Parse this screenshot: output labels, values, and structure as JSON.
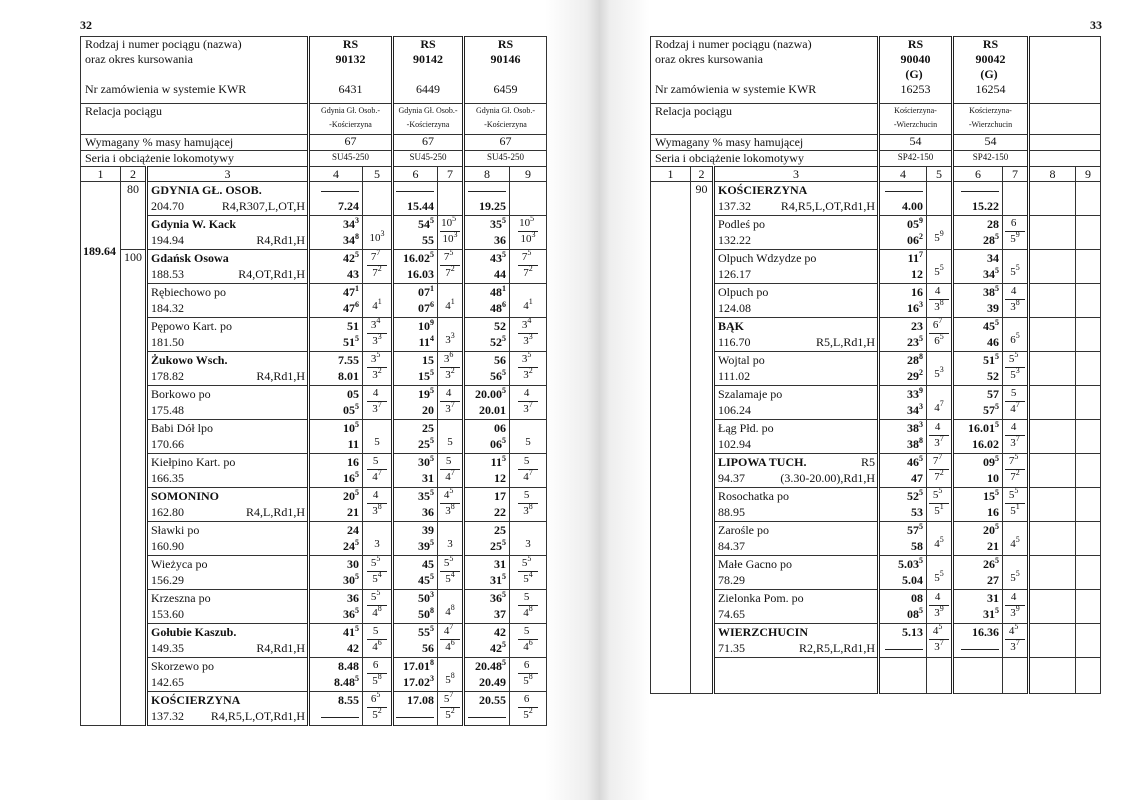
{
  "labels": {
    "train_type": "Rodzaj i numer pociągu (nazwa)",
    "period": "oraz okres kursowania",
    "kwr": "Nr zamówienia w systemie KWR",
    "relation": "Relacja pociągu",
    "brake": "Wymagany % masy hamującej",
    "loco": "Seria i obciążenie lokomotywy",
    "col_numbers": [
      "1",
      "2",
      "3",
      "4",
      "5",
      "6",
      "7",
      "8",
      "9"
    ]
  },
  "pages": [
    {
      "page_number": "32",
      "km_total": "189.64",
      "speed_marks": [
        {
          "value": "80",
          "rows": 2
        },
        {
          "value": "100",
          "rows": 14
        }
      ],
      "trains": [
        {
          "type": "RS",
          "number": "90132",
          "extra": "",
          "kwr": "6431",
          "relation": [
            "Gdynia Gł. Osob.-",
            "-Kościerzyna"
          ],
          "brake": "67",
          "loco": "SU45-250"
        },
        {
          "type": "RS",
          "number": "90142",
          "extra": "",
          "kwr": "6449",
          "relation": [
            "Gdynia Gł. Osob.-",
            "-Kościerzyna"
          ],
          "brake": "67",
          "loco": "SU45-250"
        },
        {
          "type": "RS",
          "number": "90146",
          "extra": "",
          "kwr": "6459",
          "relation": [
            "Gdynia Gł. Osob.-",
            "-Kościerzyna"
          ],
          "brake": "67",
          "loco": "SU45-250"
        }
      ],
      "stations": [
        {
          "name": "GDYNIA GŁ. OSOB.",
          "bold": true,
          "km": "204.70",
          "codes": "R4,R307,L,OT,H",
          "times": [
            [
              "—",
              "7.24",
              "",
              ""
            ],
            [
              "—",
              "15.44",
              "",
              ""
            ],
            [
              "—",
              "19.25",
              "",
              ""
            ]
          ]
        },
        {
          "name": "Gdynia W. Kack",
          "bold": true,
          "km": "194.94",
          "codes": "R4,Rd1,H",
          "times": [
            [
              "34^3",
              "34^8",
              "",
              "10^3"
            ],
            [
              "54^5",
              "55",
              "10^5",
              "10^3"
            ],
            [
              "35^5",
              "36",
              "10^5",
              "10^3"
            ]
          ]
        },
        {
          "name": "Gdańsk Osowa",
          "bold": true,
          "km": "188.53",
          "codes": "R4,OT,Rd1,H",
          "times": [
            [
              "42^5",
              "43",
              "7^7",
              "7^2"
            ],
            [
              "16.02^5",
              "16.03",
              "7^5",
              "7^2"
            ],
            [
              "43^5",
              "44",
              "7^5",
              "7^2"
            ]
          ]
        },
        {
          "name": "Rębiechowo po",
          "bold": false,
          "km": "184.32",
          "codes": "",
          "times": [
            [
              "47^1",
              "47^6",
              "",
              "4^1"
            ],
            [
              "07^1",
              "07^6",
              "",
              "4^1"
            ],
            [
              "48^1",
              "48^6",
              "",
              "4^1"
            ]
          ]
        },
        {
          "name": "Pępowo Kart. po",
          "bold": false,
          "km": "181.50",
          "codes": "",
          "times": [
            [
              "51",
              "51^5",
              "3^4",
              "3^3"
            ],
            [
              "10^9",
              "11^4",
              "",
              "3^3"
            ],
            [
              "52",
              "52^5",
              "3^4",
              "3^3"
            ]
          ]
        },
        {
          "name": "Żukowo Wsch.",
          "bold": true,
          "km": "178.82",
          "codes": "R4,Rd1,H",
          "times": [
            [
              "7.55",
              "8.01",
              "3^5",
              "3^2"
            ],
            [
              "15",
              "15^5",
              "3^6",
              "3^2"
            ],
            [
              "56",
              "56^5",
              "3^5",
              "3^2"
            ]
          ]
        },
        {
          "name": "Borkowo po",
          "bold": false,
          "km": "175.48",
          "codes": "",
          "times": [
            [
              "05",
              "05^5",
              "4",
              "3^7"
            ],
            [
              "19^5",
              "20",
              "4",
              "3^7"
            ],
            [
              "20.00^5",
              "20.01",
              "4",
              "3^7"
            ]
          ]
        },
        {
          "name": "Babi Dół lpo",
          "bold": false,
          "km": "170.66",
          "codes": "",
          "times": [
            [
              "10^5",
              "11",
              "",
              "5"
            ],
            [
              "25",
              "25^5",
              "",
              "5"
            ],
            [
              "06",
              "06^5",
              "",
              "5"
            ]
          ]
        },
        {
          "name": "Kiełpino Kart. po",
          "bold": false,
          "km": "166.35",
          "codes": "",
          "times": [
            [
              "16",
              "16^5",
              "5",
              "4^7"
            ],
            [
              "30^5",
              "31",
              "5",
              "4^7"
            ],
            [
              "11^5",
              "12",
              "5",
              "4^7"
            ]
          ]
        },
        {
          "name": "SOMONINO",
          "bold": true,
          "km": "162.80",
          "codes": "R4,L,Rd1,H",
          "times": [
            [
              "20^5",
              "21",
              "4",
              "3^8"
            ],
            [
              "35^5",
              "36",
              "4^5",
              "3^8"
            ],
            [
              "17",
              "22",
              "5",
              "3^8"
            ]
          ]
        },
        {
          "name": "Sławki po",
          "bold": false,
          "km": "160.90",
          "codes": "",
          "times": [
            [
              "24",
              "24^5",
              "",
              "3"
            ],
            [
              "39",
              "39^5",
              "",
              "3"
            ],
            [
              "25",
              "25^5",
              "",
              "3"
            ]
          ]
        },
        {
          "name": "Wieżyca po",
          "bold": false,
          "km": "156.29",
          "codes": "",
          "times": [
            [
              "30",
              "30^5",
              "5^5",
              "5^4"
            ],
            [
              "45",
              "45^5",
              "5^5",
              "5^4"
            ],
            [
              "31",
              "31^5",
              "5^5",
              "5^4"
            ]
          ]
        },
        {
          "name": "Krzeszna po",
          "bold": false,
          "km": "153.60",
          "codes": "",
          "times": [
            [
              "36",
              "36^5",
              "5^5",
              "4^8"
            ],
            [
              "50^3",
              "50^8",
              "",
              "4^8"
            ],
            [
              "36^5",
              "37",
              "5",
              "4^8"
            ]
          ]
        },
        {
          "name": "Gołubie Kaszub.",
          "bold": true,
          "km": "149.35",
          "codes": "R4,Rd1,H",
          "times": [
            [
              "41^5",
              "42",
              "5",
              "4^6"
            ],
            [
              "55^5",
              "56",
              "4^7",
              "4^6"
            ],
            [
              "42",
              "42^5",
              "5",
              "4^6"
            ]
          ]
        },
        {
          "name": "Skorzewo po",
          "bold": false,
          "km": "142.65",
          "codes": "",
          "times": [
            [
              "8.48",
              "8.48^5",
              "6",
              "5^8"
            ],
            [
              "17.01^8",
              "17.02^3",
              "",
              "5^8"
            ],
            [
              "20.48^5",
              "20.49",
              "6",
              "5^8"
            ]
          ]
        },
        {
          "name": "KOŚCIERZYNA",
          "bold": true,
          "km": "137.32",
          "codes": "R4,R5,L,OT,Rd1,H",
          "times": [
            [
              "8.55",
              "—",
              "6^5",
              "5^2"
            ],
            [
              "17.08",
              "—",
              "5^7",
              "5^2"
            ],
            [
              "20.55",
              "—",
              "6",
              "5^2"
            ]
          ]
        }
      ]
    },
    {
      "page_number": "33",
      "km_total": "",
      "speed_marks": [
        {
          "value": "90",
          "rows": 14
        }
      ],
      "trains": [
        {
          "type": "RS",
          "number": "90040",
          "extra": "(G)",
          "kwr": "16253",
          "relation": [
            "Kościerzyna-",
            "-Wierzchucin"
          ],
          "brake": "54",
          "loco": "SP42-150"
        },
        {
          "type": "RS",
          "number": "90042",
          "extra": "(G)",
          "kwr": "16254",
          "relation": [
            "Kościerzyna-",
            "-Wierzchucin"
          ],
          "brake": "54",
          "loco": "SP42-150"
        },
        {
          "type": "",
          "number": "",
          "extra": "",
          "kwr": "",
          "relation": [
            "",
            ""
          ],
          "brake": "",
          "loco": ""
        }
      ],
      "stations": [
        {
          "name": "KOŚCIERZYNA",
          "bold": true,
          "km": "137.32",
          "codes": "R4,R5,L,OT,Rd1,H",
          "times": [
            [
              "—",
              "4.00",
              "",
              ""
            ],
            [
              "—",
              "15.22",
              "",
              ""
            ]
          ]
        },
        {
          "name": "Podleś po",
          "bold": false,
          "km": "132.22",
          "codes": "",
          "times": [
            [
              "05^9",
              "06^2",
              "",
              "5^9"
            ],
            [
              "28",
              "28^5",
              "6",
              "5^9"
            ]
          ]
        },
        {
          "name": "Olpuch Wdzydze po",
          "bold": false,
          "km": "126.17",
          "codes": "",
          "times": [
            [
              "11^7",
              "12",
              "",
              "5^5"
            ],
            [
              "34",
              "34^5",
              "",
              "5^5"
            ]
          ]
        },
        {
          "name": "Olpuch po",
          "bold": false,
          "km": "124.08",
          "codes": "",
          "times": [
            [
              "16",
              "16^3",
              "4",
              "3^8"
            ],
            [
              "38^5",
              "39",
              "4",
              "3^8"
            ]
          ]
        },
        {
          "name": "BĄK",
          "bold": true,
          "km": "116.70",
          "codes": "R5,L,Rd1,H",
          "times": [
            [
              "23",
              "23^5",
              "6^7",
              "6^5"
            ],
            [
              "45^5",
              "46",
              "",
              "6^5"
            ]
          ]
        },
        {
          "name": "Wojtal po",
          "bold": false,
          "km": "111.02",
          "codes": "",
          "times": [
            [
              "28^8",
              "29^2",
              "",
              "5^3"
            ],
            [
              "51^5",
              "52",
              "5^5",
              "5^3"
            ]
          ]
        },
        {
          "name": "Szalamaje po",
          "bold": false,
          "km": "106.24",
          "codes": "",
          "times": [
            [
              "33^9",
              "34^3",
              "",
              "4^7"
            ],
            [
              "57",
              "57^5",
              "5",
              "4^7"
            ]
          ]
        },
        {
          "name": "Łąg Płd. po",
          "bold": false,
          "km": "102.94",
          "codes": "",
          "times": [
            [
              "38^3",
              "38^8",
              "4",
              "3^7"
            ],
            [
              "16.01^5",
              "16.02",
              "4",
              "3^7"
            ]
          ]
        },
        {
          "name": "LIPOWA TUCH.",
          "bold": true,
          "name_codes": "R5",
          "km": "94.37",
          "codes": "(3.30-20.00),Rd1,H",
          "times": [
            [
              "46^5",
              "47",
              "7^7",
              "7^2"
            ],
            [
              "09^5",
              "10",
              "7^5",
              "7^2"
            ]
          ]
        },
        {
          "name": "Rosochatka po",
          "bold": false,
          "km": "88.95",
          "codes": "",
          "times": [
            [
              "52^5",
              "53",
              "5^5",
              "5^1"
            ],
            [
              "15^5",
              "16",
              "5^5",
              "5^1"
            ]
          ]
        },
        {
          "name": "Zarośle po",
          "bold": false,
          "km": "84.37",
          "codes": "",
          "times": [
            [
              "57^5",
              "58",
              "",
              "4^5"
            ],
            [
              "20^5",
              "21",
              "",
              "4^5"
            ]
          ]
        },
        {
          "name": "Małe Gacno po",
          "bold": false,
          "km": "78.29",
          "codes": "",
          "times": [
            [
              "5.03^5",
              "5.04",
              "",
              "5^5"
            ],
            [
              "26^5",
              "27",
              "",
              "5^5"
            ]
          ]
        },
        {
          "name": "Zielonka Pom. po",
          "bold": false,
          "km": "74.65",
          "codes": "",
          "times": [
            [
              "08",
              "08^5",
              "4",
              "3^9"
            ],
            [
              "31",
              "31^5",
              "4",
              "3^9"
            ]
          ]
        },
        {
          "name": "WIERZCHUCIN",
          "bold": true,
          "km": "71.35",
          "codes": "R2,R5,L,Rd1,H",
          "times": [
            [
              "5.13",
              "—",
              "4^5",
              "3^7"
            ],
            [
              "16.36",
              "—",
              "4^5",
              "3^7"
            ]
          ]
        }
      ]
    }
  ]
}
